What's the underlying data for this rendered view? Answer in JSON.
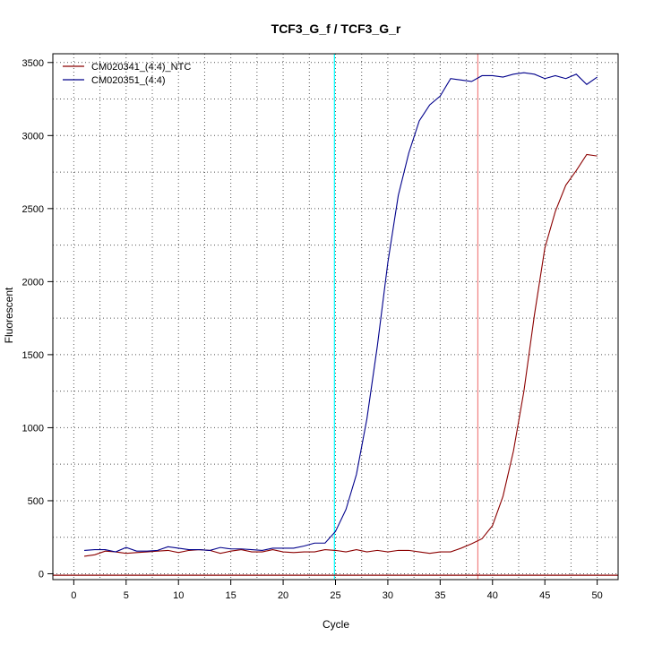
{
  "chart_data": {
    "type": "line",
    "title": "TCF3_G_f / TCF3_G_r",
    "xlabel": "Cycle",
    "ylabel": "Fluorescent",
    "xlim": [
      -2,
      52
    ],
    "ylim": [
      -40,
      3560
    ],
    "xticks": [
      0,
      5,
      10,
      15,
      20,
      25,
      30,
      35,
      40,
      45,
      50
    ],
    "yticks": [
      0,
      500,
      1000,
      1500,
      2000,
      2500,
      3000,
      3500
    ],
    "grid": true,
    "grid_style": "dotted",
    "legend_position": "top-left",
    "x": [
      1,
      2,
      3,
      4,
      5,
      6,
      7,
      8,
      9,
      10,
      11,
      12,
      13,
      14,
      15,
      16,
      17,
      18,
      19,
      20,
      21,
      22,
      23,
      24,
      25,
      26,
      27,
      28,
      29,
      30,
      31,
      32,
      33,
      34,
      35,
      36,
      37,
      38,
      39,
      40,
      41,
      42,
      43,
      44,
      45,
      46,
      47,
      48,
      49,
      50
    ],
    "series": [
      {
        "name": "CM020341_(4:4)_NTC",
        "color": "#8b0000",
        "values": [
          120,
          130,
          155,
          150,
          140,
          145,
          150,
          155,
          160,
          145,
          160,
          165,
          160,
          140,
          155,
          165,
          150,
          150,
          165,
          150,
          145,
          150,
          150,
          165,
          160,
          150,
          165,
          150,
          160,
          150,
          160,
          160,
          150,
          140,
          150,
          150,
          175,
          205,
          240,
          330,
          530,
          840,
          1250,
          1770,
          2230,
          2480,
          2660,
          2760,
          2870,
          2860
        ]
      },
      {
        "name": "CM020351_(4:4)",
        "color": "#00008b",
        "values": [
          160,
          165,
          165,
          150,
          180,
          155,
          155,
          160,
          185,
          175,
          165,
          165,
          160,
          180,
          170,
          170,
          165,
          160,
          175,
          175,
          175,
          190,
          210,
          210,
          290,
          440,
          680,
          1060,
          1560,
          2130,
          2590,
          2880,
          3100,
          3210,
          3270,
          3390,
          3380,
          3370,
          3410,
          3410,
          3400,
          3420,
          3430,
          3420,
          3390,
          3410,
          3390,
          3420,
          3350,
          3400
        ]
      }
    ],
    "vlines": [
      {
        "x": 24.9,
        "color": "#00ffff"
      },
      {
        "x": 38.6,
        "color": "#f08080"
      }
    ],
    "hlines": [
      {
        "y": -10,
        "color": "#8b0000"
      }
    ]
  }
}
